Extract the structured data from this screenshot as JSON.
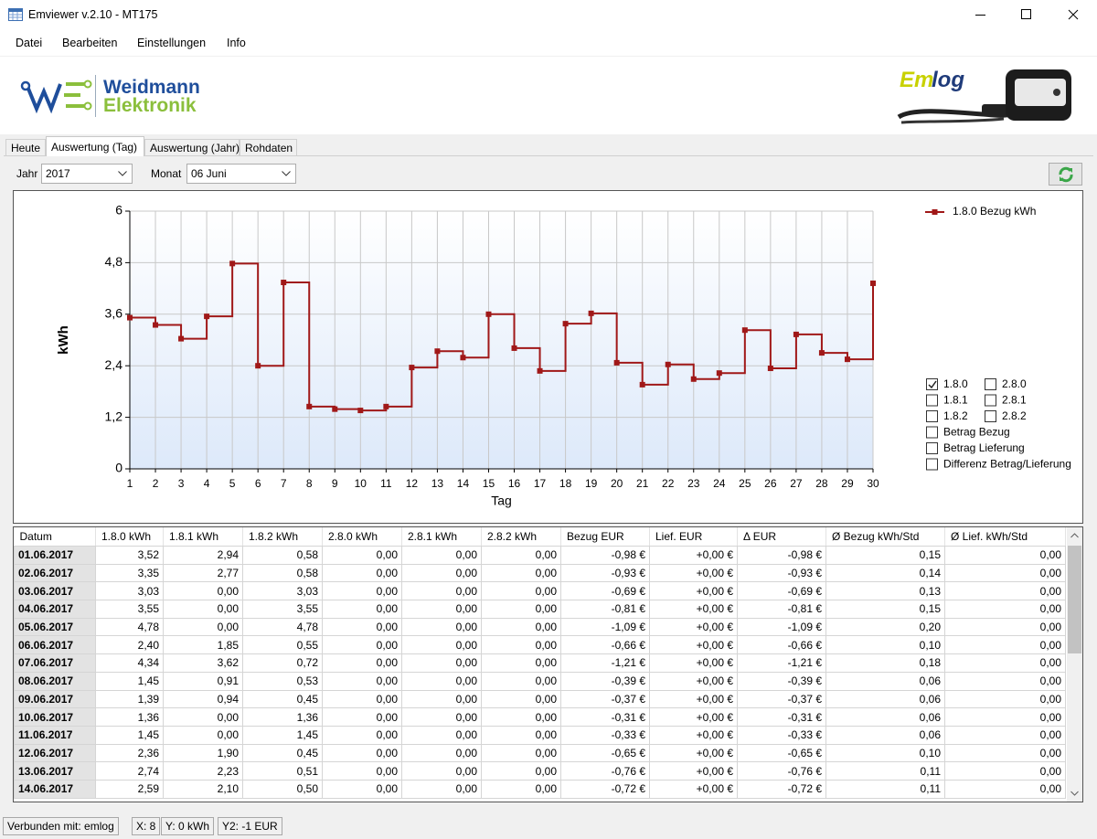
{
  "window": {
    "title": "Emviewer v.2.10 - MT175"
  },
  "menu": [
    "Datei",
    "Bearbeiten",
    "Einstellungen",
    "Info"
  ],
  "branding": {
    "company_line1": "Weidmann",
    "company_line2": "Elektronik",
    "product_a": "Em",
    "product_b": "log"
  },
  "tabs": [
    {
      "label": "Heute",
      "active": false
    },
    {
      "label": "Auswertung (Tag)",
      "active": true
    },
    {
      "label": "Auswertung (Jahr)",
      "active": false
    },
    {
      "label": "Rohdaten",
      "active": false
    }
  ],
  "filters": {
    "year_label": "Jahr",
    "year": "2017",
    "month_label": "Monat",
    "month": "06 Juni"
  },
  "chart_data": {
    "type": "line",
    "line_style": "step-after",
    "xlabel": "Tag",
    "ylabel": "kWh",
    "x": [
      1,
      2,
      3,
      4,
      5,
      6,
      7,
      8,
      9,
      10,
      11,
      12,
      13,
      14,
      15,
      16,
      17,
      18,
      19,
      20,
      21,
      22,
      23,
      24,
      25,
      26,
      27,
      28,
      29,
      30
    ],
    "xlim": [
      1,
      30
    ],
    "xticks": [
      1,
      2,
      3,
      4,
      5,
      6,
      7,
      8,
      9,
      10,
      11,
      12,
      13,
      14,
      15,
      16,
      17,
      18,
      19,
      20,
      21,
      22,
      23,
      24,
      25,
      26,
      27,
      28,
      29,
      30
    ],
    "ylim": [
      0,
      6
    ],
    "yticks": [
      0,
      {
        "value": 1.2,
        "label": "1,2"
      },
      {
        "value": 2.4,
        "label": "2,4"
      },
      {
        "value": 3.6,
        "label": "3,6"
      },
      {
        "value": 4.8,
        "label": "4,8"
      },
      6
    ],
    "grid": true,
    "legend": "upper right",
    "series": [
      {
        "name": "1.8.0 Bezug kWh",
        "color": "#a01818",
        "values": [
          3.52,
          3.35,
          3.03,
          3.55,
          4.78,
          2.4,
          4.34,
          1.45,
          1.39,
          1.36,
          1.45,
          2.36,
          2.74,
          2.59,
          3.6,
          2.81,
          2.28,
          3.38,
          3.62,
          2.47,
          1.96,
          2.43,
          2.09,
          2.23,
          3.23,
          2.34,
          3.13,
          2.7,
          2.55,
          4.32
        ]
      }
    ]
  },
  "checkboxes": [
    {
      "label": "1.8.0",
      "checked": true
    },
    {
      "label": "2.8.0",
      "checked": false
    },
    {
      "label": "1.8.1",
      "checked": false
    },
    {
      "label": "2.8.1",
      "checked": false
    },
    {
      "label": "1.8.2",
      "checked": false
    },
    {
      "label": "2.8.2",
      "checked": false
    },
    {
      "label": "Betrag Bezug",
      "checked": false
    },
    {
      "label": "Betrag Lieferung",
      "checked": false
    },
    {
      "label": "Differenz Betrag/Lieferung",
      "checked": false
    }
  ],
  "table": {
    "columns": [
      "Datum",
      "1.8.0 kWh",
      "1.8.1 kWh",
      "1.8.2 kWh",
      "2.8.0 kWh",
      "2.8.1 kWh",
      "2.8.2 kWh",
      "Bezug EUR",
      "Lief. EUR",
      "Δ EUR",
      "Ø Bezug kWh/Std",
      "Ø Lief. kWh/Std"
    ],
    "rows": [
      [
        "01.06.2017",
        "3,52",
        "2,94",
        "0,58",
        "0,00",
        "0,00",
        "0,00",
        "-0,98 €",
        "+0,00 €",
        "-0,98 €",
        "0,15",
        "0,00"
      ],
      [
        "02.06.2017",
        "3,35",
        "2,77",
        "0,58",
        "0,00",
        "0,00",
        "0,00",
        "-0,93 €",
        "+0,00 €",
        "-0,93 €",
        "0,14",
        "0,00"
      ],
      [
        "03.06.2017",
        "3,03",
        "0,00",
        "3,03",
        "0,00",
        "0,00",
        "0,00",
        "-0,69 €",
        "+0,00 €",
        "-0,69 €",
        "0,13",
        "0,00"
      ],
      [
        "04.06.2017",
        "3,55",
        "0,00",
        "3,55",
        "0,00",
        "0,00",
        "0,00",
        "-0,81 €",
        "+0,00 €",
        "-0,81 €",
        "0,15",
        "0,00"
      ],
      [
        "05.06.2017",
        "4,78",
        "0,00",
        "4,78",
        "0,00",
        "0,00",
        "0,00",
        "-1,09 €",
        "+0,00 €",
        "-1,09 €",
        "0,20",
        "0,00"
      ],
      [
        "06.06.2017",
        "2,40",
        "1,85",
        "0,55",
        "0,00",
        "0,00",
        "0,00",
        "-0,66 €",
        "+0,00 €",
        "-0,66 €",
        "0,10",
        "0,00"
      ],
      [
        "07.06.2017",
        "4,34",
        "3,62",
        "0,72",
        "0,00",
        "0,00",
        "0,00",
        "-1,21 €",
        "+0,00 €",
        "-1,21 €",
        "0,18",
        "0,00"
      ],
      [
        "08.06.2017",
        "1,45",
        "0,91",
        "0,53",
        "0,00",
        "0,00",
        "0,00",
        "-0,39 €",
        "+0,00 €",
        "-0,39 €",
        "0,06",
        "0,00"
      ],
      [
        "09.06.2017",
        "1,39",
        "0,94",
        "0,45",
        "0,00",
        "0,00",
        "0,00",
        "-0,37 €",
        "+0,00 €",
        "-0,37 €",
        "0,06",
        "0,00"
      ],
      [
        "10.06.2017",
        "1,36",
        "0,00",
        "1,36",
        "0,00",
        "0,00",
        "0,00",
        "-0,31 €",
        "+0,00 €",
        "-0,31 €",
        "0,06",
        "0,00"
      ],
      [
        "11.06.2017",
        "1,45",
        "0,00",
        "1,45",
        "0,00",
        "0,00",
        "0,00",
        "-0,33 €",
        "+0,00 €",
        "-0,33 €",
        "0,06",
        "0,00"
      ],
      [
        "12.06.2017",
        "2,36",
        "1,90",
        "0,45",
        "0,00",
        "0,00",
        "0,00",
        "-0,65 €",
        "+0,00 €",
        "-0,65 €",
        "0,10",
        "0,00"
      ],
      [
        "13.06.2017",
        "2,74",
        "2,23",
        "0,51",
        "0,00",
        "0,00",
        "0,00",
        "-0,76 €",
        "+0,00 €",
        "-0,76 €",
        "0,11",
        "0,00"
      ],
      [
        "14.06.2017",
        "2,59",
        "2,10",
        "0,50",
        "0,00",
        "0,00",
        "0,00",
        "-0,72 €",
        "+0,00 €",
        "-0,72 €",
        "0,11",
        "0,00"
      ]
    ]
  },
  "status_bar": [
    "Verbunden mit: emlog",
    "X: 8",
    "Y: 0 kWh",
    "Y2: -1 EUR"
  ]
}
